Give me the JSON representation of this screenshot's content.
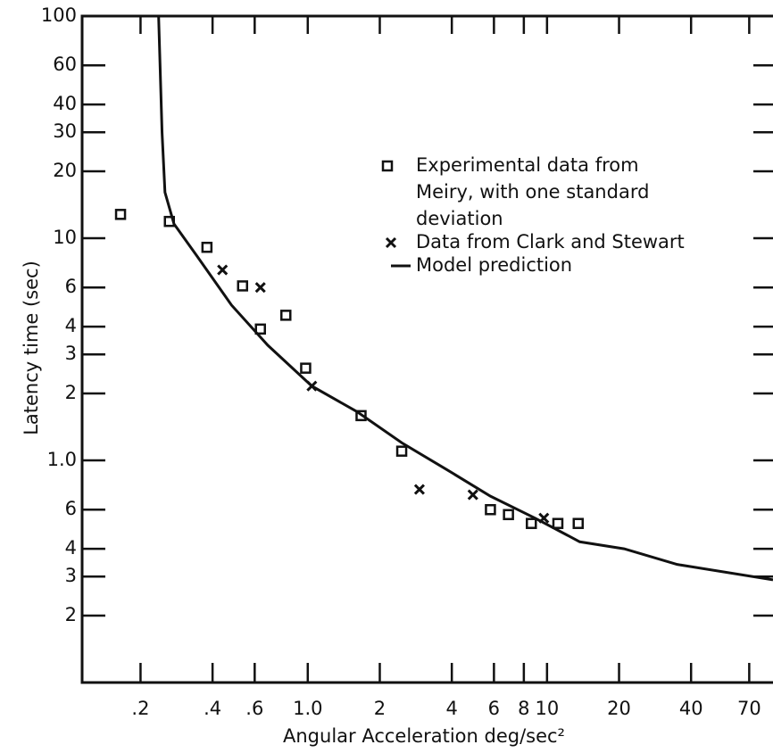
{
  "chart_data": {
    "type": "scatter",
    "xlabel": "Angular Acceleration deg/sec²",
    "ylabel": "Latency time (sec)",
    "log_x": true,
    "log_y": true,
    "xlim": [
      0.114,
      88
    ],
    "ylim": [
      0.1,
      100
    ],
    "xticks": [
      {
        "value": 0.2,
        "label": ".2"
      },
      {
        "value": 0.4,
        "label": ".4"
      },
      {
        "value": 0.6,
        "label": ".6"
      },
      {
        "value": 1,
        "label": "1.0"
      },
      2,
      4,
      6,
      8,
      10,
      20,
      40,
      70
    ],
    "yticks": [
      100,
      60,
      40,
      30,
      20,
      10,
      6,
      4,
      3,
      2,
      {
        "value": 1,
        "label": "1.0"
      },
      {
        "value": 0.6,
        "label": "6"
      },
      {
        "value": 0.4,
        "label": "4"
      },
      {
        "value": 0.3,
        "label": "3"
      },
      {
        "value": 0.2,
        "label": "2"
      }
    ],
    "series": [
      {
        "name": "Experimental data from Meiry, with one standard deviation",
        "marker": "square",
        "color": "#111111",
        "x": [
          0.165,
          0.264,
          0.379,
          0.534,
          0.634,
          0.81,
          0.98,
          1.67,
          2.47,
          5.8,
          6.9,
          8.6,
          11.1,
          13.5
        ],
        "values": [
          12.8,
          11.9,
          9.1,
          6.1,
          3.9,
          4.5,
          2.6,
          1.59,
          1.1,
          0.6,
          0.57,
          0.52,
          0.52,
          0.52
        ]
      },
      {
        "name": "Data from Clark and Stewart",
        "marker": "cross",
        "color": "#111111",
        "x": [
          0.44,
          0.634,
          1.04,
          2.93,
          4.9,
          9.7
        ],
        "values": [
          7.2,
          6.0,
          2.16,
          0.74,
          0.7,
          0.55
        ]
      },
      {
        "name": "Model prediction",
        "marker": "line",
        "color": "#111111",
        "x": [
          0.238,
          0.246,
          0.253,
          0.276,
          0.342,
          0.48,
          0.68,
          1.04,
          1.6,
          2.47,
          3.8,
          5.8,
          8.9,
          13.7,
          21,
          35,
          88
        ],
        "values": [
          100,
          30,
          16.1,
          11.6,
          8.4,
          5.0,
          3.3,
          2.16,
          1.66,
          1.2,
          0.91,
          0.69,
          0.55,
          0.43,
          0.4,
          0.34,
          0.29
        ]
      }
    ]
  }
}
